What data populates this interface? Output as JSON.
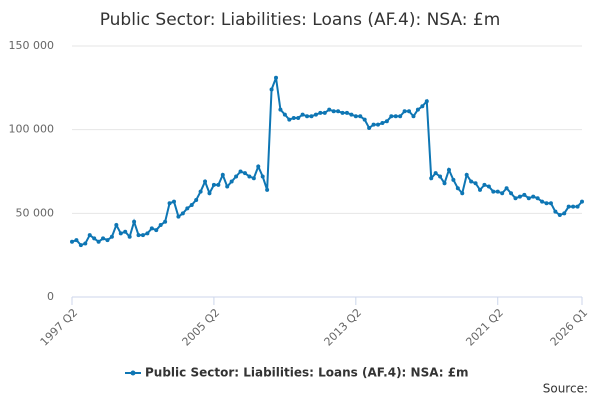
{
  "chart_data": {
    "type": "line",
    "title": "Public Sector: Liabilities: Loans (AF.4): NSA: £m",
    "source": "Source:",
    "categories": [
      "1997 Q2",
      null,
      null,
      null,
      null,
      null,
      null,
      null,
      null,
      null,
      null,
      null,
      null,
      null,
      null,
      null,
      null,
      null,
      null,
      null,
      null,
      null,
      null,
      null,
      null,
      null,
      null,
      null,
      null,
      null,
      null,
      null,
      "2005 Q2",
      null,
      null,
      null,
      null,
      null,
      null,
      null,
      null,
      null,
      null,
      null,
      null,
      null,
      null,
      null,
      null,
      null,
      null,
      null,
      null,
      null,
      null,
      null,
      null,
      null,
      null,
      null,
      null,
      null,
      null,
      null,
      "2013 Q2",
      null,
      null,
      null,
      null,
      null,
      null,
      null,
      null,
      null,
      null,
      null,
      null,
      null,
      null,
      null,
      null,
      null,
      null,
      null,
      null,
      null,
      null,
      null,
      null,
      null,
      null,
      null,
      null,
      null,
      null,
      null,
      "2021 Q2",
      null,
      null,
      null,
      null,
      null,
      null,
      null,
      null,
      null,
      null,
      null,
      null,
      null,
      null,
      null,
      null,
      null,
      null,
      "2026 Q1"
    ],
    "series": [
      {
        "name": "Public Sector: Liabilities: Loans (AF.4): NSA: £m",
        "color": "#0e76b4",
        "values": [
          33000,
          34000,
          31000,
          32000,
          37000,
          35000,
          33000,
          35000,
          34000,
          36000,
          43000,
          38000,
          39000,
          36000,
          45000,
          37000,
          37000,
          38000,
          41000,
          40000,
          43000,
          45000,
          56000,
          57000,
          48000,
          50000,
          53000,
          55000,
          58000,
          63000,
          69000,
          62000,
          67000,
          67000,
          73000,
          66000,
          69000,
          72000,
          75000,
          74000,
          72000,
          71000,
          78000,
          72000,
          64000,
          124000,
          131000,
          112000,
          109000,
          106000,
          107000,
          107000,
          109000,
          108000,
          108000,
          109000,
          110000,
          110000,
          112000,
          111000,
          111000,
          110000,
          110000,
          109000,
          108000,
          108000,
          106000,
          101000,
          103000,
          103000,
          104000,
          105000,
          108000,
          108000,
          108000,
          111000,
          111000,
          108000,
          112000,
          114000,
          117000,
          71000,
          74000,
          72000,
          68000,
          76000,
          70000,
          65000,
          62000,
          73000,
          69000,
          68000,
          64000,
          67000,
          66000,
          63000,
          63000,
          62000,
          65000,
          62000,
          59000,
          60000,
          61000,
          59000,
          60000,
          59000,
          57000,
          56000,
          56000,
          51000,
          49000,
          50000,
          54000,
          54000,
          54000,
          57000
        ]
      }
    ],
    "ylim": [
      0,
      150000
    ],
    "yticks": [
      0,
      {
        "value": 50000,
        "label": "50 000"
      },
      {
        "value": 100000,
        "label": "100 000"
      },
      {
        "value": 150000,
        "label": "150 000"
      }
    ],
    "grid": true
  }
}
